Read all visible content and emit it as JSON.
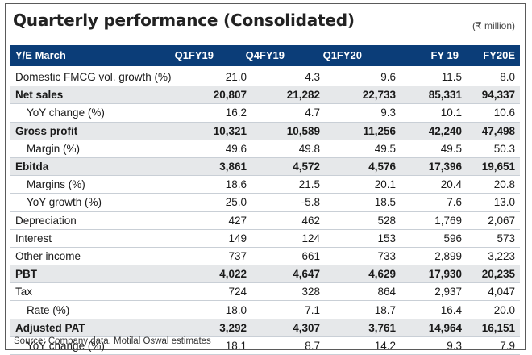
{
  "title": "Quarterly performance (Consolidated)",
  "unit": "(₹ million)",
  "header": {
    "label": "Y/E March",
    "columns": [
      "Q1FY19",
      "Q4FY19",
      "Q1FY20",
      "FY 19",
      "FY20E"
    ]
  },
  "rows": [
    {
      "label": "Domestic FMCG vol. growth (%)",
      "values": [
        "21.0",
        "4.3",
        "9.6",
        "11.5",
        "8.0"
      ]
    },
    {
      "label": "Net sales",
      "values": [
        "20,807",
        "21,282",
        "22,733",
        "85,331",
        "94,337"
      ]
    },
    {
      "label": "YoY change (%)",
      "values": [
        "16.2",
        "4.7",
        "9.3",
        "10.1",
        "10.6"
      ]
    },
    {
      "label": "Gross profit",
      "values": [
        "10,321",
        "10,589",
        "11,256",
        "42,240",
        "47,498"
      ]
    },
    {
      "label": "Margin (%)",
      "values": [
        "49.6",
        "49.8",
        "49.5",
        "49.5",
        "50.3"
      ]
    },
    {
      "label": "Ebitda",
      "values": [
        "3,861",
        "4,572",
        "4,576",
        "17,396",
        "19,651"
      ]
    },
    {
      "label": "Margins (%)",
      "values": [
        "18.6",
        "21.5",
        "20.1",
        "20.4",
        "20.8"
      ]
    },
    {
      "label": "YoY growth (%)",
      "values": [
        "25.0",
        "-5.8",
        "18.5",
        "7.6",
        "13.0"
      ]
    },
    {
      "label": "Depreciation",
      "values": [
        "427",
        "462",
        "528",
        "1,769",
        "2,067"
      ]
    },
    {
      "label": "Interest",
      "values": [
        "149",
        "124",
        "153",
        "596",
        "573"
      ]
    },
    {
      "label": "Other income",
      "values": [
        "737",
        "661",
        "733",
        "2,899",
        "3,223"
      ]
    },
    {
      "label": "PBT",
      "values": [
        "4,022",
        "4,647",
        "4,629",
        "17,930",
        "20,235"
      ]
    },
    {
      "label": "Tax",
      "values": [
        "724",
        "328",
        "864",
        "2,937",
        "4,047"
      ]
    },
    {
      "label": "Rate (%)",
      "values": [
        "18.0",
        "7.1",
        "18.7",
        "16.4",
        "20.0"
      ]
    },
    {
      "label": "Adjusted PAT",
      "values": [
        "3,292",
        "4,307",
        "3,761",
        "14,964",
        "16,151"
      ]
    },
    {
      "label": "YoY change (%)",
      "values": [
        "18.1",
        "8.7",
        "14.2",
        "9.3",
        "7.9"
      ]
    }
  ],
  "source": "Source: Company data, Motilal Oswal estimates",
  "colors": {
    "header_bg": "#0b3d78",
    "bold_row_bg": "#e6e8ea",
    "rule": "#c9cfd6"
  }
}
